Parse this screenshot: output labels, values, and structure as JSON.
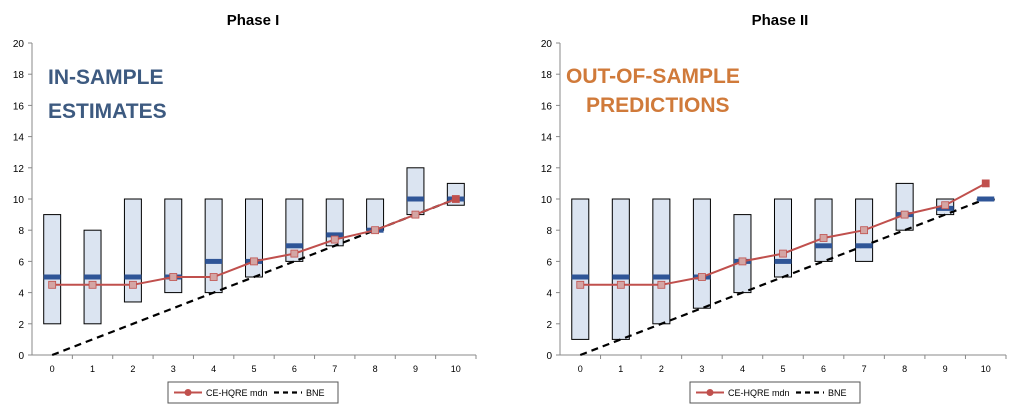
{
  "chart_data": [
    {
      "type": "line",
      "title": "Phase I",
      "annotation": [
        "IN-SAMPLE",
        "ESTIMATES"
      ],
      "annotation_color": "#3d5a80",
      "categories": [
        "0",
        "1",
        "2",
        "3",
        "4",
        "5",
        "6",
        "7",
        "8",
        "9",
        "10"
      ],
      "ylim": [
        0,
        20
      ],
      "yticks": [
        "0",
        "2",
        "4",
        "6",
        "8",
        "10",
        "12",
        "14",
        "16",
        "18",
        "20"
      ],
      "boxes": [
        {
          "low": 2,
          "high": 9,
          "median": 5
        },
        {
          "low": 2,
          "high": 8,
          "median": 5
        },
        {
          "low": 3.4,
          "high": 10,
          "median": 5
        },
        {
          "low": 4,
          "high": 10,
          "median": 5
        },
        {
          "low": 4,
          "high": 10,
          "median": 6
        },
        {
          "low": 5,
          "high": 10,
          "median": 6
        },
        {
          "low": 6,
          "high": 10,
          "median": 7
        },
        {
          "low": 7,
          "high": 10,
          "median": 7.7
        },
        {
          "low": 8,
          "high": 10,
          "median": 8
        },
        {
          "low": 9,
          "high": 12,
          "median": 10
        },
        {
          "low": 9.6,
          "high": 11,
          "median": 10
        }
      ],
      "series": [
        {
          "name": "CE-HQRE mdn",
          "values": [
            4.5,
            4.5,
            4.5,
            5,
            5,
            6,
            6.5,
            7.4,
            8,
            9,
            10
          ],
          "color": "#c0504d"
        },
        {
          "name": "BNE",
          "values": [
            0,
            1,
            2,
            3,
            4,
            5,
            6,
            7,
            8,
            9,
            10
          ],
          "color": "#000000"
        }
      ],
      "box_fill": "#dbe4f1",
      "median_color": "#2f5597"
    },
    {
      "type": "line",
      "title": "Phase II",
      "annotation": [
        "OUT-OF-SAMPLE",
        "PREDICTIONS"
      ],
      "annotation_color": "#d07a3a",
      "categories": [
        "0",
        "1",
        "2",
        "3",
        "4",
        "5",
        "6",
        "7",
        "8",
        "9",
        "10"
      ],
      "ylim": [
        0,
        20
      ],
      "yticks": [
        "0",
        "2",
        "4",
        "6",
        "8",
        "10",
        "12",
        "14",
        "16",
        "18",
        "20"
      ],
      "boxes": [
        {
          "low": 1,
          "high": 10,
          "median": 5
        },
        {
          "low": 1,
          "high": 10,
          "median": 5
        },
        {
          "low": 2,
          "high": 10,
          "median": 5
        },
        {
          "low": 3,
          "high": 10,
          "median": 5
        },
        {
          "low": 4,
          "high": 9,
          "median": 6
        },
        {
          "low": 5,
          "high": 10,
          "median": 6
        },
        {
          "low": 6,
          "high": 10,
          "median": 7
        },
        {
          "low": 6,
          "high": 10,
          "median": 7
        },
        {
          "low": 8,
          "high": 11,
          "median": 9
        },
        {
          "low": 9,
          "high": 10,
          "median": 9.4
        },
        {
          "low": 10,
          "high": 10,
          "median": 10
        }
      ],
      "series": [
        {
          "name": "CE-HQRE mdn",
          "values": [
            4.5,
            4.5,
            4.5,
            5,
            6,
            6.5,
            7.5,
            8,
            9,
            9.6,
            11
          ],
          "color": "#c0504d"
        },
        {
          "name": "BNE",
          "values": [
            0,
            1,
            2,
            3,
            4,
            5,
            6,
            7,
            8,
            9,
            10
          ],
          "color": "#000000"
        }
      ],
      "box_fill": "#dbe4f1",
      "median_color": "#2f5597"
    }
  ]
}
